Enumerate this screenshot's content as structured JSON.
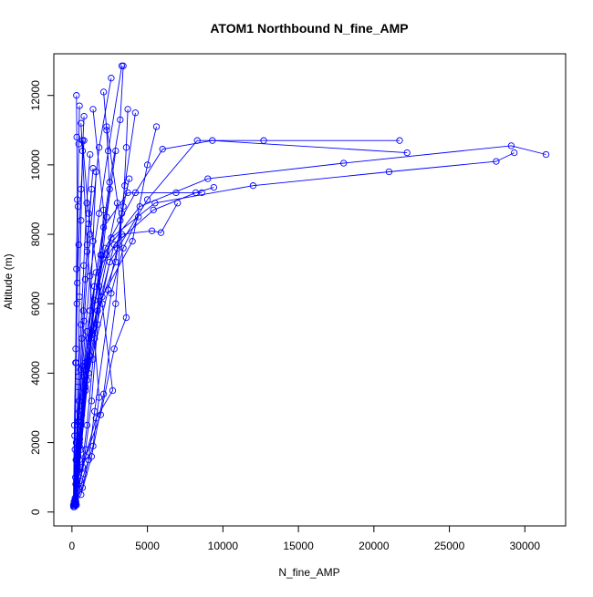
{
  "chart_data": {
    "type": "line",
    "title": "ATOM1 Northbound N_fine_AMP",
    "xlabel": "N_fine_AMP",
    "ylabel": "Altitude (m)",
    "xlim": [
      -1200,
      32700
    ],
    "ylim": [
      -400,
      13200
    ],
    "x_ticks": [
      0,
      5000,
      10000,
      15000,
      20000,
      25000,
      30000
    ],
    "y_ticks": [
      0,
      2000,
      4000,
      6000,
      8000,
      10000,
      12000
    ],
    "x_tick_labels": [
      "0",
      "5000",
      "10000",
      "15000",
      "20000",
      "25000",
      "30000"
    ],
    "y_tick_labels": [
      "0",
      "2000",
      "4000",
      "6000",
      "8000",
      "10000",
      "12000"
    ],
    "series_color": "#0000ff",
    "grid": false,
    "legend": "none",
    "profiles": [
      {
        "x": [
          200,
          400,
          900,
          1500,
          2500,
          3200,
          3400
        ],
        "y": [
          200,
          1200,
          3500,
          6500,
          9500,
          11300,
          12850
        ]
      },
      {
        "x": [
          150,
          300,
          700,
          1200,
          1800,
          2400,
          3300
        ],
        "y": [
          300,
          2000,
          4200,
          6800,
          8600,
          10400,
          12850
        ]
      },
      {
        "x": [
          250,
          500,
          1000,
          2000,
          4000,
          5000,
          5600
        ],
        "y": [
          250,
          1500,
          3800,
          6200,
          7800,
          10000,
          11100
        ]
      },
      {
        "x": [
          300,
          600,
          1200,
          2500,
          5000,
          8300,
          12700,
          21700
        ],
        "y": [
          200,
          1800,
          4500,
          7200,
          9000,
          10700,
          10700,
          10700
        ]
      },
      {
        "x": [
          200,
          500,
          1100,
          2200,
          4200,
          6000,
          9300,
          22200
        ],
        "y": [
          350,
          2200,
          5000,
          7600,
          9200,
          10450,
          10700,
          10350
        ]
      },
      {
        "x": [
          180,
          420,
          900,
          2000,
          4500,
          9000,
          18000,
          29100,
          31400
        ],
        "y": [
          200,
          1600,
          4300,
          7400,
          8800,
          9600,
          10050,
          10550,
          10300
        ]
      },
      {
        "x": [
          220,
          520,
          1300,
          2600,
          5500,
          12000,
          21000,
          28100,
          29300
        ],
        "y": [
          300,
          2100,
          5100,
          7900,
          8900,
          9400,
          9800,
          10100,
          10350
        ]
      },
      {
        "x": [
          150,
          350,
          800,
          1600,
          3300,
          5300,
          5900,
          7000
        ],
        "y": [
          200,
          1400,
          4100,
          6900,
          8000,
          8100,
          8050,
          8900
        ]
      },
      {
        "x": [
          260,
          600,
          1400,
          2800,
          5400,
          8200,
          9400
        ],
        "y": [
          250,
          2500,
          5300,
          7700,
          8700,
          9200,
          9350
        ]
      },
      {
        "x": [
          200,
          450,
          1000,
          2100,
          3700,
          6900,
          8600
        ],
        "y": [
          400,
          2600,
          5200,
          8200,
          9200,
          9200,
          9200
        ]
      },
      {
        "x": [
          170,
          380,
          820,
          1700,
          2900,
          3400,
          3600,
          3700
        ],
        "y": [
          150,
          1300,
          3900,
          5800,
          7200,
          8800,
          10500,
          11600
        ]
      },
      {
        "x": [
          240,
          500,
          1100,
          2400,
          3000,
          3500,
          4200
        ],
        "y": [
          250,
          1900,
          4000,
          6400,
          7600,
          9400,
          11500
        ]
      },
      {
        "x": [
          160,
          300,
          650,
          1300,
          1900,
          2500,
          2300,
          2100
        ],
        "y": [
          200,
          900,
          2800,
          5200,
          7400,
          9300,
          11000,
          12100
        ]
      },
      {
        "x": [
          210,
          330,
          500,
          800,
          1200,
          1800,
          2600
        ],
        "y": [
          250,
          1100,
          2900,
          5500,
          8000,
          10500,
          12500
        ]
      },
      {
        "x": [
          140,
          260,
          400,
          500,
          600,
          700,
          800
        ],
        "y": [
          200,
          1500,
          3600,
          6200,
          8400,
          10400,
          11400
        ]
      },
      {
        "x": [
          100,
          180,
          250,
          300,
          350,
          320,
          300
        ],
        "y": [
          200,
          2200,
          4700,
          7000,
          9000,
          10800,
          12000
        ]
      },
      {
        "x": [
          120,
          200,
          280,
          350,
          400,
          450,
          500
        ],
        "y": [
          150,
          1800,
          4300,
          6600,
          8800,
          10600,
          11700
        ]
      },
      {
        "x": [
          190,
          700,
          1600,
          2700,
          2000,
          1100,
          700
        ],
        "y": [
          200,
          1300,
          2700,
          3500,
          6000,
          8600,
          10700
        ]
      },
      {
        "x": [
          200,
          900,
          1900,
          2800,
          3600,
          3200,
          2300
        ],
        "y": [
          250,
          1600,
          2800,
          4700,
          5600,
          8400,
          11100
        ]
      },
      {
        "x": [
          230,
          800,
          1400,
          1800,
          1500,
          1000,
          600
        ],
        "y": [
          200,
          1100,
          1900,
          3300,
          5000,
          7700,
          11200
        ]
      },
      {
        "x": [
          150,
          450,
          900,
          1300,
          1700,
          2100,
          1400
        ],
        "y": [
          300,
          700,
          1800,
          3200,
          5400,
          8700,
          11600
        ]
      },
      {
        "x": [
          170,
          600,
          1300,
          2100,
          2900,
          3300,
          3800
        ],
        "y": [
          200,
          500,
          1600,
          3400,
          6000,
          8600,
          9600
        ]
      },
      {
        "x": [
          260,
          700,
          1100,
          1500,
          2600,
          3400,
          4400
        ],
        "y": [
          300,
          700,
          1500,
          2900,
          6300,
          7600,
          8500
        ]
      },
      {
        "x": [
          200,
          550,
          1000,
          1400,
          1800,
          2300,
          2900
        ],
        "y": [
          200,
          900,
          2500,
          4400,
          6500,
          8500,
          10400
        ]
      },
      {
        "x": [
          130,
          250,
          500,
          900,
          1200,
          1400,
          1600
        ],
        "y": [
          200,
          800,
          2000,
          3600,
          5800,
          7800,
          9800
        ]
      },
      {
        "x": [
          110,
          230,
          380,
          560,
          750,
          1000,
          1300
        ],
        "y": [
          150,
          1000,
          2600,
          4100,
          5800,
          7500,
          9300
        ]
      },
      {
        "x": [
          180,
          320,
          480,
          650,
          880,
          1100,
          1400
        ],
        "y": [
          250,
          1700,
          3200,
          5000,
          6700,
          8300,
          9900
        ]
      },
      {
        "x": [
          150,
          280,
          430,
          600,
          780,
          980,
          1200
        ],
        "y": [
          200,
          2000,
          3900,
          5400,
          7100,
          8900,
          10300
        ]
      },
      {
        "x": [
          100,
          160,
          240,
          330,
          450,
          600,
          800
        ],
        "y": [
          200,
          2500,
          4300,
          6000,
          7700,
          9300,
          10700
        ]
      },
      {
        "x": [
          200,
          350,
          600,
          1000,
          1500,
          2300,
          3000
        ],
        "y": [
          250,
          1200,
          2600,
          4200,
          6100,
          7400,
          8900
        ]
      }
    ]
  }
}
